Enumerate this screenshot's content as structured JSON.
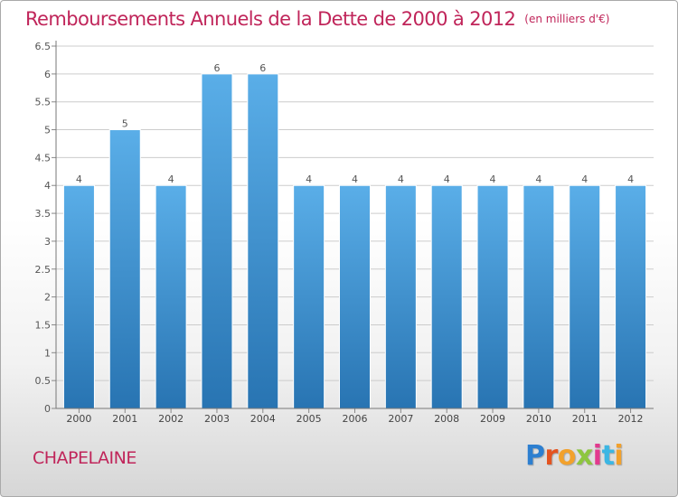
{
  "title": "Remboursements Annuels de la Dette de 2000 à 2012",
  "subtitle": "(en milliers d'€)",
  "location": "CHAPELAINE",
  "logo": {
    "letters": [
      "P",
      "r",
      "o",
      "x",
      "i",
      "t",
      "i"
    ],
    "colors": [
      "#2d7fd0",
      "#e4531f",
      "#f2a12c",
      "#8dc63f",
      "#e23a8e",
      "#3cb6e3",
      "#f2a12c"
    ]
  },
  "colors": {
    "accent": "#c0255a",
    "bar_top": "#5aaee8",
    "bar_bottom": "#2874b2",
    "grid": "#cccccc"
  },
  "chart_data": {
    "type": "bar",
    "categories": [
      "2000",
      "2001",
      "2002",
      "2003",
      "2004",
      "2005",
      "2006",
      "2007",
      "2008",
      "2009",
      "2010",
      "2011",
      "2012"
    ],
    "values": [
      4,
      5,
      4,
      6,
      6,
      4,
      4,
      4,
      4,
      4,
      4,
      4,
      4
    ],
    "data_labels": [
      "4",
      "5",
      "4",
      "6",
      "6",
      "4",
      "4",
      "4",
      "4",
      "4",
      "4",
      "4",
      "4"
    ],
    "yticks": [
      "0",
      "0.5",
      "1",
      "1.5",
      "2",
      "2.5",
      "3",
      "3.5",
      "4",
      "4.5",
      "5",
      "5.5",
      "6",
      "6.5"
    ],
    "ylim": [
      0,
      6.5
    ],
    "grid": true,
    "xlabel": "",
    "ylabel": ""
  }
}
